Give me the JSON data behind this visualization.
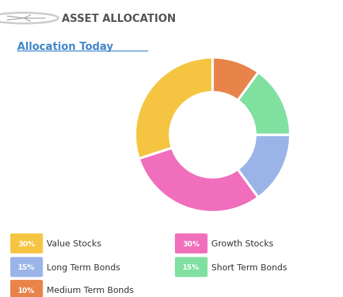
{
  "title": "ASSET ALLOCATION",
  "subtitle": "Allocation Today",
  "slices": [
    30,
    30,
    15,
    15,
    10
  ],
  "labels": [
    "Value Stocks",
    "Growth Stocks",
    "Long Term Bonds",
    "Short Term Bonds",
    "Medium Term Bonds"
  ],
  "percentages": [
    "30%",
    "30%",
    "15%",
    "15%",
    "10%"
  ],
  "colors": [
    "#F5C542",
    "#F06EBB",
    "#9BB4E8",
    "#7FE0A0",
    "#E8834A"
  ],
  "start_angle": 90,
  "donut_width": 0.45,
  "background_color": "#ffffff",
  "title_color": "#555555",
  "subtitle_color": "#4488cc",
  "legend_layout": [
    {
      "pct": "30%",
      "label": "Value Stocks",
      "color": "#F5C542",
      "col": 0,
      "row": 0
    },
    {
      "pct": "15%",
      "label": "Long Term Bonds",
      "color": "#9BB4E8",
      "col": 0,
      "row": 1
    },
    {
      "pct": "10%",
      "label": "Medium Term Bonds",
      "color": "#E8834A",
      "col": 0,
      "row": 2
    },
    {
      "pct": "30%",
      "label": "Growth Stocks",
      "color": "#F06EBB",
      "col": 1,
      "row": 0
    },
    {
      "pct": "15%",
      "label": "Short Term Bonds",
      "color": "#7FE0A0",
      "col": 1,
      "row": 1
    }
  ]
}
